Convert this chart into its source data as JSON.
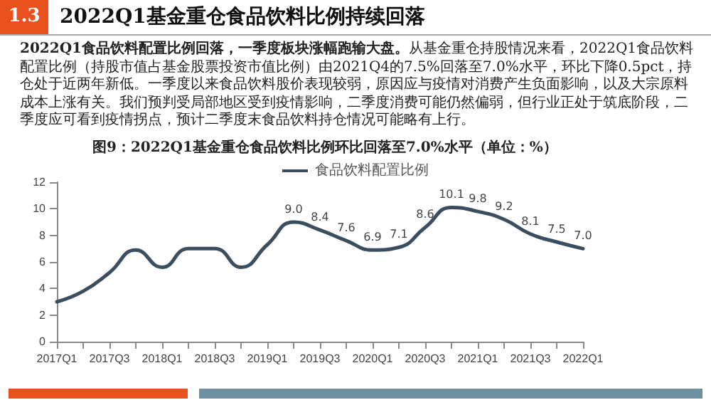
{
  "chart_data": {
    "type": "line",
    "title": "2022Q1基金重仓食品饮料比例持续回落",
    "subtitle": "图9：2022Q1基金重仓食品饮料比例环比回落至7.0%水平（单位：%）",
    "annotations": [
      "1.3",
      "2022Q1食品饮料配置比例回落，一季度板块涨幅跑输大盘。",
      "从基金重仓持股情况来看，2022Q1食品饮料配置比例（持股市值占基金股票投资市值比例）由2021Q4的7.5%回落至7.0%水平，环比下降0.5pct，持仓处于近两年新低。一季度以来食品饮料股价表现较弱，原因应与疫情对消费产生负面影响，以及大宗原料成本上涨有关。我们预判受局部地区受到疫情影响，二季度消费可能仍然偏弱，但行业正处于筑底阶段，二季度应可看到疫情拐点，预计二季度末食品饮料持仓情况可能略有上行。"
    ],
    "categories": [
      "2017Q1",
      null,
      "2017Q3",
      null,
      "2018Q1",
      null,
      "2018Q3",
      null,
      "2019Q1",
      null,
      "2019Q3",
      null,
      "2020Q1",
      null,
      "2020Q3",
      null,
      "2021Q1",
      null,
      "2021Q3",
      null,
      "2022Q1"
    ],
    "series": [
      {
        "name": "食品饮料配置比例",
        "color": "#3b4e5f",
        "values": [
          3.0,
          3.8,
          5.2,
          6.9,
          5.6,
          7.0,
          7.0,
          5.6,
          7.3,
          9.0,
          8.4,
          7.6,
          6.9,
          7.1,
          8.6,
          10.1,
          9.8,
          9.2,
          8.1,
          7.5,
          7.0
        ],
        "value_labels": [
          null,
          null,
          null,
          null,
          null,
          null,
          null,
          null,
          null,
          "9.0",
          "8.4",
          "7.6",
          "6.9",
          "7.1",
          "8.6",
          "10.1",
          "9.8",
          "9.2",
          "8.1",
          "7.5",
          "7.0"
        ]
      }
    ],
    "ylim": [
      0,
      12
    ],
    "yticks": [
      0,
      2,
      4,
      6,
      8,
      10,
      12
    ],
    "grid": false,
    "legend": "top",
    "marker": "none",
    "line_style": "solid"
  }
}
